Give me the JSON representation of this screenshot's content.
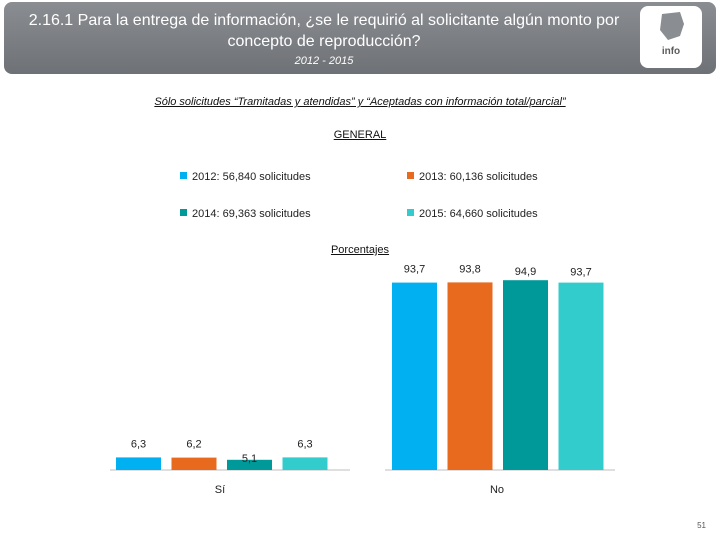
{
  "header": {
    "title": "2.16.1 Para la entrega de información, ¿se le requirió al solicitante algún monto por concepto de reproducción?",
    "years": "2012 - 2015",
    "logo_text": "info"
  },
  "subtitle": "Sólo solicitudes “Tramitadas y atendidas” y “Aceptadas con información total/parcial”",
  "general_label": "GENERAL",
  "percent_label": "Porcentajes",
  "page_number": "51",
  "colors": {
    "2012": "#00b0f0",
    "2013": "#e86a1f",
    "2014": "#009999",
    "2015": "#33cccc"
  },
  "chart_data": {
    "type": "bar",
    "title": "GENERAL",
    "ylabel": "Porcentajes",
    "categories": [
      "Sí",
      "No"
    ],
    "ylim": [
      0,
      100
    ],
    "series": [
      {
        "name": "2012: 56,840 solicitudes",
        "values": [
          6.3,
          93.7
        ],
        "labels": [
          "6,3",
          "93,7"
        ]
      },
      {
        "name": "2013: 60,136 solicitudes",
        "values": [
          6.2,
          93.8
        ],
        "labels": [
          "6,2",
          "93,8"
        ]
      },
      {
        "name": "2014: 69,363 solicitudes",
        "values": [
          5.1,
          94.9
        ],
        "labels": [
          "5,1",
          "94,9"
        ]
      },
      {
        "name": "2015: 64,660 solicitudes",
        "values": [
          6.3,
          93.7
        ],
        "labels": [
          "6,3",
          "93,7"
        ]
      }
    ]
  }
}
